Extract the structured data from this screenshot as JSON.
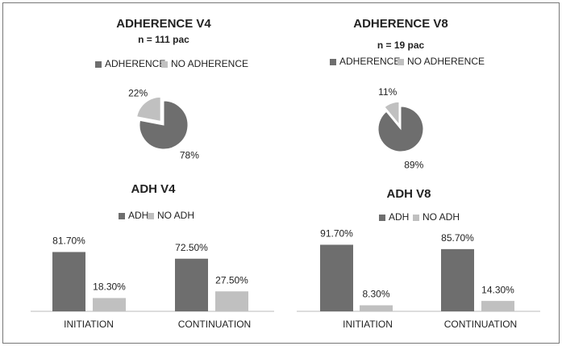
{
  "chart_data": [
    {
      "type": "pie",
      "title": "ADHERENCE V4",
      "subtitle": "n = 111 pac",
      "categories": [
        "ADHERENCE",
        "NO ADHERENCE"
      ],
      "values": [
        78,
        22
      ],
      "value_labels": [
        "78%",
        "22%"
      ],
      "colors": [
        "#6e6e6e",
        "#c0c0c0"
      ]
    },
    {
      "type": "pie",
      "title": "ADHERENCE V8",
      "subtitle": "n = 19 pac",
      "categories": [
        "ADHERENCE",
        "NO ADHERENCE"
      ],
      "values": [
        89,
        11
      ],
      "value_labels": [
        "89%",
        "11%"
      ],
      "colors": [
        "#6e6e6e",
        "#c0c0c0"
      ]
    },
    {
      "type": "bar",
      "title": "ADH V4",
      "categories": [
        "INITIATION",
        "CONTINUATION"
      ],
      "series": [
        {
          "name": "ADH",
          "color": "#6e6e6e",
          "values": [
            81.7,
            72.5
          ],
          "value_labels": [
            "81.70%",
            "72.50%"
          ]
        },
        {
          "name": "NO ADH",
          "color": "#c0c0c0",
          "values": [
            18.3,
            27.5
          ],
          "value_labels": [
            "18.30%",
            "27.50%"
          ]
        }
      ]
    },
    {
      "type": "bar",
      "title": "ADH V8",
      "categories": [
        "INITIATION",
        "CONTINUATION"
      ],
      "series": [
        {
          "name": "ADH",
          "color": "#6e6e6e",
          "values": [
            91.7,
            85.7
          ],
          "value_labels": [
            "91.70%",
            "85.70%"
          ]
        },
        {
          "name": "NO ADH",
          "color": "#c0c0c0",
          "values": [
            8.3,
            14.3
          ],
          "value_labels": [
            "8.30%",
            "14.30%"
          ]
        }
      ]
    }
  ]
}
